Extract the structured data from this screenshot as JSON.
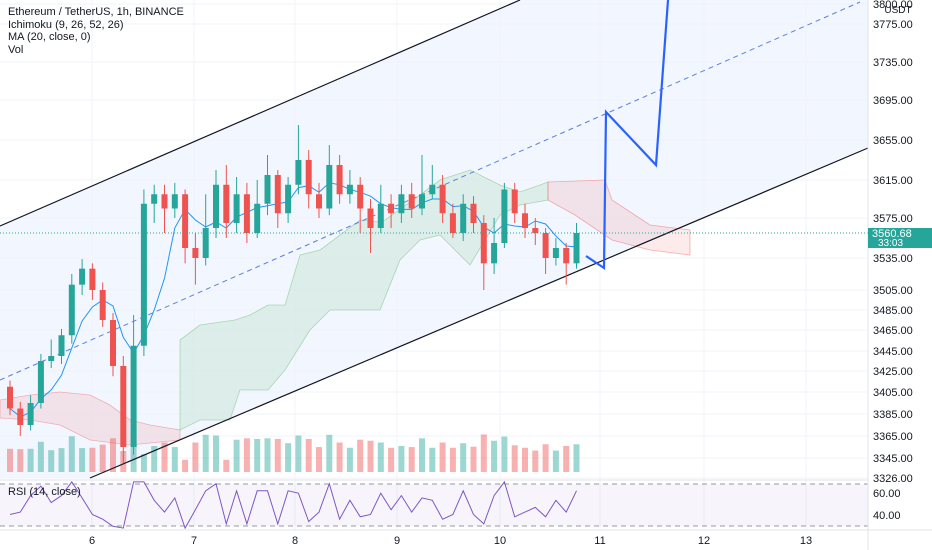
{
  "header": {
    "title": "Ethereum / TetherUS, 1h, BINANCE",
    "ichimoku": "Ichimoku (9, 26, 52, 26)",
    "ma": "MA (20, close, 0)",
    "vol": "Vol",
    "currency": "USDT"
  },
  "rsi_panel": {
    "label": "RSI (14, close)"
  },
  "price_label": {
    "price": "3560.68",
    "countdown": "33:03"
  },
  "colors": {
    "up": "#26a69a",
    "down": "#ef5350",
    "channel": "#131722",
    "projection": "#2962ff",
    "ma": "#2196f3",
    "rsi": "#7e57c2",
    "cloud_up": "#4caf50",
    "cloud_down": "#ef5350"
  },
  "chart_data": {
    "type": "candlestick",
    "symbol": "Ethereum / TetherUS",
    "interval": "1h",
    "exchange": "BINANCE",
    "ylim": [
      3326,
      3805
    ],
    "y_ticks": [
      3326,
      3345,
      3365,
      3385,
      3405,
      3425,
      3445,
      3465,
      3485,
      3505,
      3535,
      3575,
      3615,
      3655,
      3695,
      3735,
      3775,
      3800
    ],
    "y_tick_labels": [
      "3326.00",
      "3345.00",
      "3365.00",
      "3385.00",
      "3405.00",
      "3425.00",
      "3445.00",
      "3465.00",
      "3485.00",
      "3505.00",
      "3535.00",
      "3575.00",
      "3615.00",
      "3655.00",
      "3695.00",
      "3735.00",
      "3775.00",
      "3800.00"
    ],
    "x_ticks": [
      "6",
      "7",
      "8",
      "9",
      "10",
      "11",
      "12",
      "13"
    ],
    "last_price": 3560.68,
    "channel": {
      "upper": [
        [
          0,
          3570
        ],
        [
          60,
          3815
        ]
      ],
      "lower": [
        [
          0,
          3300
        ],
        [
          60,
          3645
        ]
      ],
      "mid": [
        [
          0,
          3425
        ],
        [
          60,
          3800
        ]
      ]
    },
    "projection": [
      [
        56,
        3535
      ],
      [
        57.5,
        3690
      ],
      [
        59,
        3632
      ],
      [
        60.5,
        3805
      ]
    ],
    "rsi": {
      "levels": [
        70,
        30
      ],
      "tick_labels": [
        "60.00",
        "40.00"
      ]
    },
    "candles": [
      [
        3410,
        3390,
        3416,
        3384
      ],
      [
        3390,
        3375,
        3396,
        3365
      ],
      [
        3375,
        3395,
        3402,
        3370
      ],
      [
        3395,
        3435,
        3442,
        3390
      ],
      [
        3435,
        3440,
        3456,
        3428
      ],
      [
        3440,
        3460,
        3466,
        3432
      ],
      [
        3460,
        3510,
        3520,
        3452
      ],
      [
        3510,
        3525,
        3534,
        3500
      ],
      [
        3525,
        3505,
        3530,
        3495
      ],
      [
        3505,
        3475,
        3512,
        3468
      ],
      [
        3475,
        3430,
        3482,
        3420
      ],
      [
        3430,
        3355,
        3440,
        3340
      ],
      [
        3355,
        3450,
        3480,
        3348
      ],
      [
        3450,
        3590,
        3605,
        3440
      ],
      [
        3590,
        3600,
        3610,
        3570
      ],
      [
        3600,
        3585,
        3610,
        3560
      ],
      [
        3585,
        3600,
        3612,
        3575
      ],
      [
        3600,
        3545,
        3605,
        3530
      ],
      [
        3545,
        3535,
        3560,
        3510
      ],
      [
        3535,
        3565,
        3600,
        3528
      ],
      [
        3565,
        3610,
        3625,
        3555
      ],
      [
        3610,
        3570,
        3630,
        3555
      ],
      [
        3570,
        3600,
        3618,
        3560
      ],
      [
        3600,
        3560,
        3612,
        3550
      ],
      [
        3560,
        3590,
        3615,
        3555
      ],
      [
        3590,
        3620,
        3640,
        3578
      ],
      [
        3620,
        3580,
        3625,
        3565
      ],
      [
        3580,
        3610,
        3618,
        3570
      ],
      [
        3610,
        3635,
        3670,
        3600
      ],
      [
        3635,
        3600,
        3645,
        3585
      ],
      [
        3600,
        3585,
        3612,
        3575
      ],
      [
        3585,
        3630,
        3650,
        3578
      ],
      [
        3630,
        3600,
        3640,
        3590
      ],
      [
        3600,
        3610,
        3625,
        3590
      ],
      [
        3610,
        3585,
        3618,
        3560
      ],
      [
        3585,
        3565,
        3595,
        3540
      ],
      [
        3565,
        3590,
        3610,
        3560
      ],
      [
        3590,
        3580,
        3600,
        3565
      ],
      [
        3580,
        3600,
        3610,
        3570
      ],
      [
        3600,
        3585,
        3612,
        3575
      ],
      [
        3585,
        3600,
        3640,
        3578
      ],
      [
        3600,
        3610,
        3630,
        3595
      ],
      [
        3610,
        3580,
        3620,
        3570
      ],
      [
        3580,
        3560,
        3590,
        3555
      ],
      [
        3560,
        3590,
        3600,
        3552
      ],
      [
        3590,
        3570,
        3598,
        3560
      ],
      [
        3570,
        3530,
        3578,
        3505
      ],
      [
        3530,
        3550,
        3575,
        3520
      ],
      [
        3550,
        3605,
        3612,
        3545
      ],
      [
        3605,
        3580,
        3612,
        3570
      ],
      [
        3580,
        3565,
        3590,
        3555
      ],
      [
        3565,
        3560,
        3575,
        3548
      ],
      [
        3560,
        3535,
        3565,
        3520
      ],
      [
        3535,
        3545,
        3555,
        3528
      ],
      [
        3545,
        3530,
        3550,
        3510
      ],
      [
        3530,
        3560,
        3570,
        3525
      ]
    ]
  }
}
